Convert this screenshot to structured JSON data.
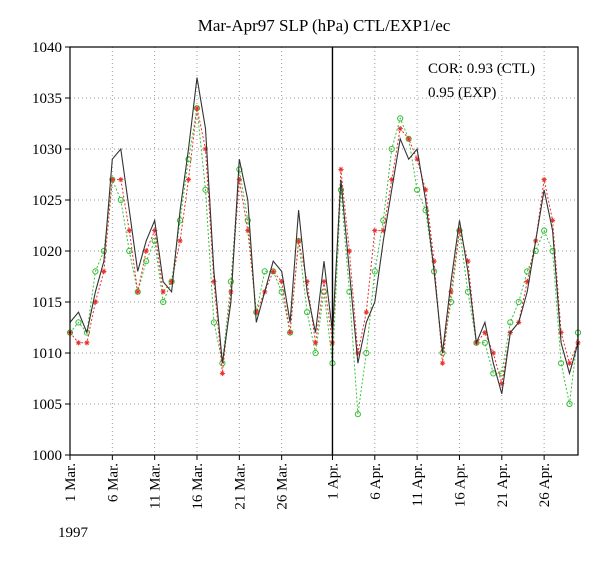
{
  "chart_data": {
    "type": "line",
    "title": "Mar-Apr97 SLP (hPa) CTL/EXP1/ec",
    "year_label": "1997",
    "ylim": [
      1000,
      1040
    ],
    "yticks": [
      1000,
      1005,
      1010,
      1015,
      1020,
      1025,
      1030,
      1035,
      1040
    ],
    "xlim": [
      "1997-03-01",
      "1997-04-30"
    ],
    "xticks": [
      {
        "date": "1997-03-01",
        "label": "1 Mar."
      },
      {
        "date": "1997-03-06",
        "label": "6 Mar."
      },
      {
        "date": "1997-03-11",
        "label": "11 Mar."
      },
      {
        "date": "1997-03-16",
        "label": "16 Mar."
      },
      {
        "date": "1997-03-21",
        "label": "21 Mar."
      },
      {
        "date": "1997-03-26",
        "label": "26 Mar."
      },
      {
        "date": "1997-04-01",
        "label": "1 Apr."
      },
      {
        "date": "1997-04-06",
        "label": "6 Apr."
      },
      {
        "date": "1997-04-11",
        "label": "11 Apr."
      },
      {
        "date": "1997-04-16",
        "label": "16 Apr."
      },
      {
        "date": "1997-04-21",
        "label": "21 Apr."
      },
      {
        "date": "1997-04-26",
        "label": "26 Apr."
      }
    ],
    "grid": true,
    "vertical_line": "1997-04-01",
    "annotations": [
      "COR: 0.93 (CTL)",
      "0.95 (EXP)"
    ],
    "x": [
      "1997-03-01",
      "1997-03-02",
      "1997-03-03",
      "1997-03-04",
      "1997-03-05",
      "1997-03-06",
      "1997-03-07",
      "1997-03-08",
      "1997-03-09",
      "1997-03-10",
      "1997-03-11",
      "1997-03-12",
      "1997-03-13",
      "1997-03-14",
      "1997-03-15",
      "1997-03-16",
      "1997-03-17",
      "1997-03-18",
      "1997-03-19",
      "1997-03-20",
      "1997-03-21",
      "1997-03-22",
      "1997-03-23",
      "1997-03-24",
      "1997-03-25",
      "1997-03-26",
      "1997-03-27",
      "1997-03-28",
      "1997-03-29",
      "1997-03-30",
      "1997-03-31",
      "1997-04-01",
      "1997-04-02",
      "1997-04-03",
      "1997-04-04",
      "1997-04-05",
      "1997-04-06",
      "1997-04-07",
      "1997-04-08",
      "1997-04-09",
      "1997-04-10",
      "1997-04-11",
      "1997-04-12",
      "1997-04-13",
      "1997-04-14",
      "1997-04-15",
      "1997-04-16",
      "1997-04-17",
      "1997-04-18",
      "1997-04-19",
      "1997-04-20",
      "1997-04-21",
      "1997-04-22",
      "1997-04-23",
      "1997-04-24",
      "1997-04-25",
      "1997-04-26",
      "1997-04-27",
      "1997-04-28",
      "1997-04-29",
      "1997-04-30"
    ],
    "series": [
      {
        "style": "black-solid",
        "values": [
          1013,
          1014,
          1012,
          1016,
          1019,
          1029,
          1030,
          1024,
          1018,
          1021,
          1023,
          1017,
          1016,
          1024,
          1030,
          1037,
          1032,
          1018,
          1009,
          1015,
          1029,
          1025,
          1013,
          1016,
          1019,
          1018,
          1013,
          1024,
          1016,
          1012,
          1019,
          1012,
          1027,
          1018,
          1009,
          1013,
          1015,
          1021,
          1026,
          1031,
          1029,
          1030,
          1025,
          1018,
          1010,
          1017,
          1023,
          1018,
          1011,
          1013,
          1009,
          1006,
          1012,
          1013,
          1016,
          1021,
          1026,
          1022,
          1011,
          1008,
          1011
        ]
      },
      {
        "style": "red-dotted-stars",
        "values": [
          1012,
          1011,
          1011,
          1015,
          1018,
          1027,
          1027,
          1022,
          1016,
          1020,
          1022,
          1016,
          1017,
          1021,
          1027,
          1034,
          1030,
          1017,
          1008,
          1016,
          1027,
          1022,
          1014,
          1016,
          1018,
          1017,
          1012,
          1021,
          1017,
          1011,
          1017,
          1011,
          1028,
          1020,
          1010,
          1014,
          1022,
          1022,
          1027,
          1032,
          1031,
          1029,
          1026,
          1019,
          1009,
          1016,
          1022,
          1019,
          1011,
          1012,
          1010,
          1007,
          1012,
          1013,
          1017,
          1021,
          1027,
          1023,
          1012,
          1009,
          1011
        ]
      },
      {
        "style": "green-dotted-circles",
        "values": [
          1012,
          1013,
          1012,
          1018,
          1020,
          1027,
          1025,
          1020,
          1016,
          1019,
          1021,
          1015,
          1017,
          1023,
          1029,
          1034,
          1026,
          1013,
          1009,
          1017,
          1028,
          1023,
          1014,
          1018,
          1018,
          1016,
          1012,
          1021,
          1014,
          1010,
          1016,
          1009,
          1026,
          1016,
          1004,
          1010,
          1018,
          1023,
          1030,
          1033,
          1031,
          1026,
          1024,
          1018,
          1010,
          1015,
          1022,
          1016,
          1011,
          1011,
          1008,
          1008,
          1013,
          1015,
          1018,
          1020,
          1022,
          1020,
          1009,
          1005,
          1012
        ]
      }
    ]
  }
}
